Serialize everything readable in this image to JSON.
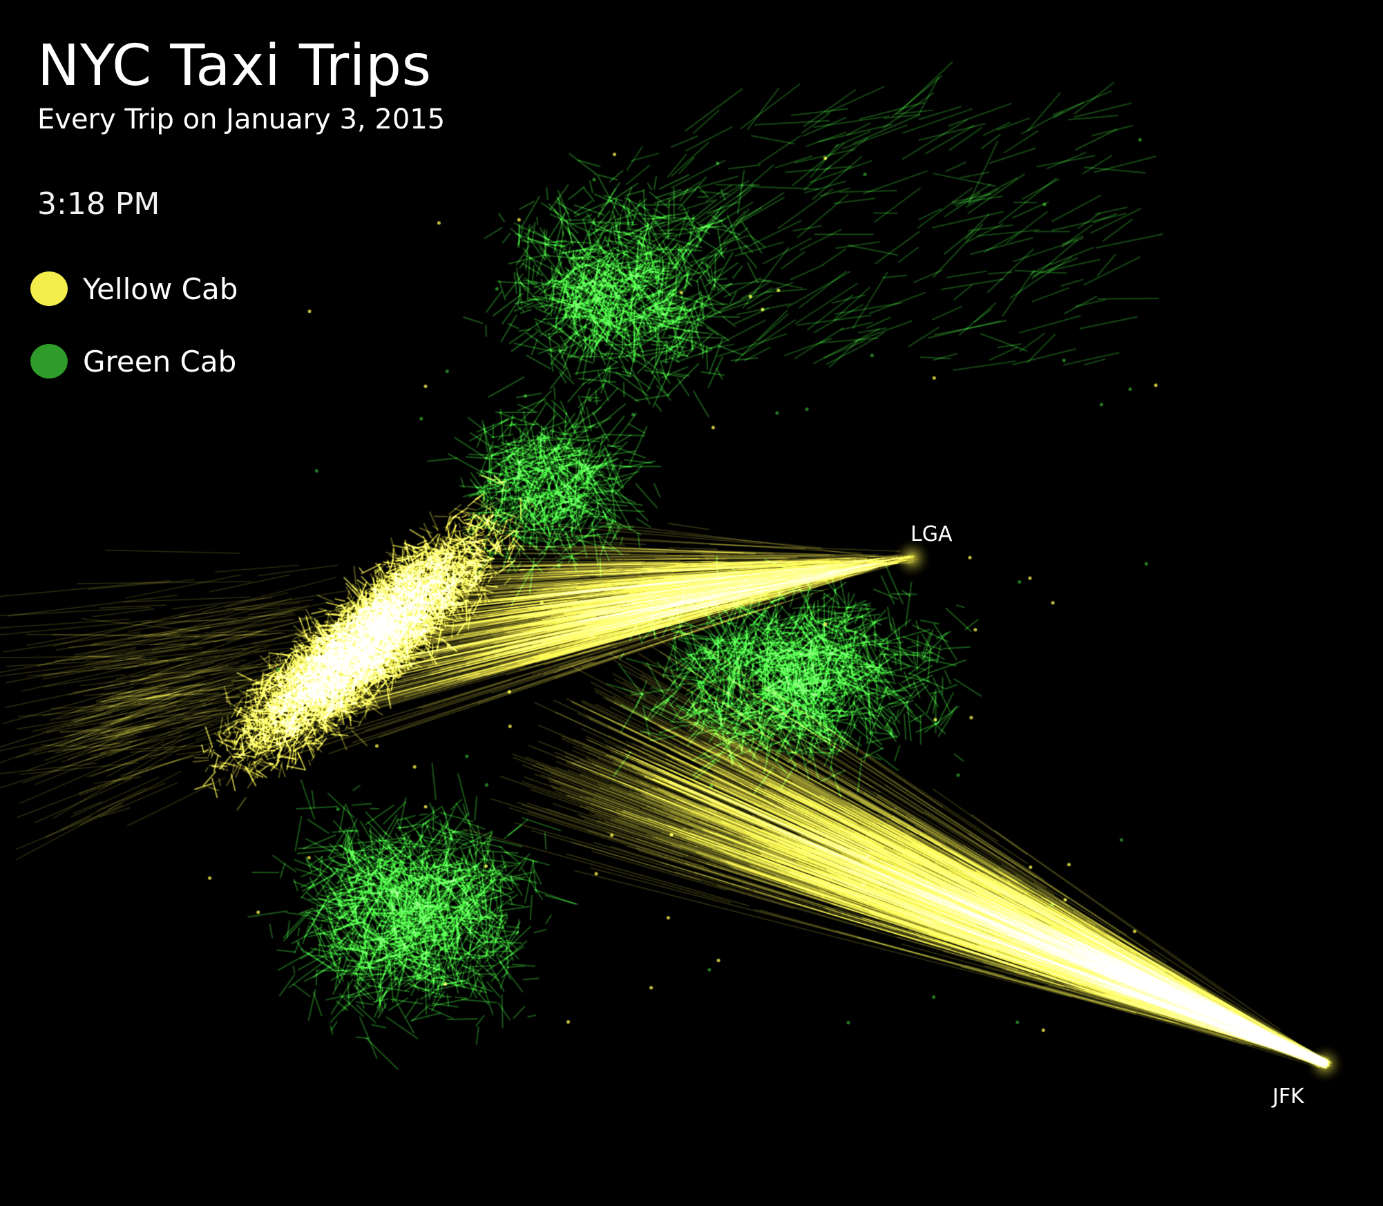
{
  "title": "NYC Taxi Trips",
  "subtitle": "Every Trip on January 3, 2015",
  "clock": "3:18 PM",
  "legend": [
    {
      "label": "Yellow Cab",
      "color": "#f4ee4c"
    },
    {
      "label": "Green Cab",
      "color": "#2e9b2a"
    }
  ],
  "airports": [
    {
      "code": "LGA"
    },
    {
      "code": "JFK"
    }
  ],
  "colors": {
    "background": "#000000",
    "yellow_cab": "#f4ee4c",
    "green_cab": "#2e9b2a",
    "text": "#ffffff"
  }
}
